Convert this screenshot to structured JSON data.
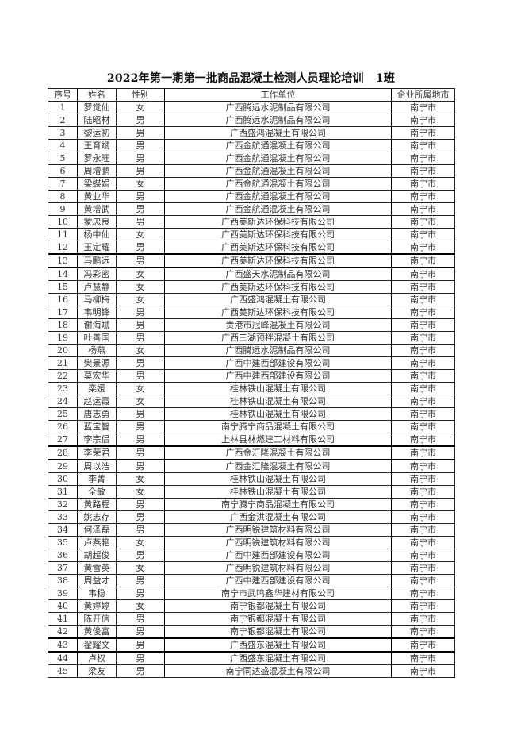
{
  "title": "2022年第一期第一批商品混凝土检测人员理论培训   1班",
  "headers": [
    "序号",
    "姓名",
    "性别",
    "工作单位",
    "企业所属地市"
  ],
  "rows": [
    [
      "1",
      "罗觉仙",
      "女",
      "广西腾远水泥制品有限公司",
      "南宁市"
    ],
    [
      "2",
      "陆昭材",
      "男",
      "广西腾远水泥制品有限公司",
      "南宁市"
    ],
    [
      "3",
      "黎运初",
      "男",
      "广西盛鸿混凝土有限公司",
      "南宁市"
    ],
    [
      "4",
      "王育斌",
      "男",
      "广西金航通混凝土有限公司",
      "南宁市"
    ],
    [
      "5",
      "罗永旺",
      "男",
      "广西金航通混凝土有限公司",
      "南宁市"
    ],
    [
      "6",
      "周增鹏",
      "男",
      "广西金航通混凝土有限公司",
      "南宁市"
    ],
    [
      "7",
      "梁蝶娟",
      "女",
      "广西金航通混凝土有限公司",
      "南宁市"
    ],
    [
      "8",
      "黄业华",
      "男",
      "广西金航通混凝土有限公司",
      "南宁市"
    ],
    [
      "9",
      "黄增武",
      "男",
      "广西金航通混凝土有限公司",
      "南宁市"
    ],
    [
      "10",
      "蒙忠良",
      "男",
      "广西美斯达环保科技有限公司",
      "南宁市"
    ],
    [
      "11",
      "杨中仙",
      "女",
      "广西美斯达环保科技有限公司",
      "南宁市"
    ],
    [
      "12",
      "王定耀",
      "男",
      "广西美斯达环保科技有限公司",
      "南宁市"
    ],
    [
      "13",
      "马鹏远",
      "男",
      "广西美斯达环保科技有限公司",
      "南宁市"
    ],
    [
      "14",
      "冯彩密",
      "女",
      "广西盛天水泥制品有限公司",
      "南宁市"
    ],
    [
      "15",
      "卢慧静",
      "女",
      "广西美斯达环保科技有限公司",
      "南宁市"
    ],
    [
      "16",
      "马柳梅",
      "女",
      "广西盛鸿混凝土有限公司",
      "南宁市"
    ],
    [
      "17",
      "韦明锋",
      "男",
      "广西美斯达环保科技有限公司",
      "南宁市"
    ],
    [
      "18",
      "谢海斌",
      "男",
      "贵港市冠峰混凝土有限公司",
      "南宁市"
    ],
    [
      "19",
      "叶善国",
      "男",
      "广西三湖预拌混凝土有限公司",
      "南宁市"
    ],
    [
      "20",
      "杨燕",
      "女",
      "广西腾远水泥制品有限公司",
      "南宁市"
    ],
    [
      "21",
      "樊景源",
      "男",
      "广西中建西部建设有限公司",
      "南宁市"
    ],
    [
      "22",
      "莫宏华",
      "男",
      "广西中建西部建设有限公司",
      "南宁市"
    ],
    [
      "23",
      "栾媛",
      "女",
      "桂林铁山混凝土有限公司",
      "南宁市"
    ],
    [
      "24",
      "赵运霞",
      "女",
      "桂林铁山混凝土有限公司",
      "南宁市"
    ],
    [
      "25",
      "唐志勇",
      "男",
      "桂林铁山混凝土有限公司",
      "南宁市"
    ],
    [
      "26",
      "蓝宝智",
      "男",
      "南宁腾宁商品混凝土有限公司",
      "南宁市"
    ],
    [
      "27",
      "李宗侣",
      "男",
      "上林县林燃建工材料有限公司",
      "南宁市"
    ],
    [
      "28",
      "李荣君",
      "男",
      "广西金汇隆混凝土有限公司",
      "南宁市"
    ],
    [
      "29",
      "周以浩",
      "男",
      "广西金汇隆混凝土有限公司",
      "南宁市"
    ],
    [
      "30",
      "李菁",
      "女",
      "桂林铁山混凝土有限公司",
      "南宁市"
    ],
    [
      "31",
      "全敏",
      "女",
      "桂林铁山混凝土有限公司",
      "南宁市"
    ],
    [
      "32",
      "黄路程",
      "男",
      "南宁腾宁商品混凝土有限公司",
      "南宁市"
    ],
    [
      "33",
      "姚志存",
      "男",
      "广西金洪混凝土有限公司",
      "南宁市"
    ],
    [
      "34",
      "何泽磊",
      "男",
      "广西明锐建筑材料有限公司",
      "南宁市"
    ],
    [
      "35",
      "卢燕艳",
      "女",
      "广西明锐建筑材料有限公司",
      "南宁市"
    ],
    [
      "36",
      "胡超俊",
      "男",
      "广西中建西部建设有限公司",
      "南宁市"
    ],
    [
      "37",
      "黄雪英",
      "女",
      "广西明锐建筑材料有限公司",
      "南宁市"
    ],
    [
      "38",
      "周益才",
      "男",
      "广西中建西部建设有限公司",
      "南宁市"
    ],
    [
      "39",
      "韦稳",
      "男",
      "南宁市武鸣鑫华建材有限公司",
      "南宁市"
    ],
    [
      "40",
      "黄婷婷",
      "女",
      "南宁银都混凝土有限公司",
      "南宁市"
    ],
    [
      "41",
      "陈开信",
      "男",
      "南宁银都混凝土有限公司",
      "南宁市"
    ],
    [
      "42",
      "黄俊富",
      "男",
      "南宁银都混凝土有限公司",
      "南宁市"
    ],
    [
      "43",
      "翟耀文",
      "男",
      "广西盛东混凝土有限公司",
      "南宁市"
    ],
    [
      "44",
      "卢权",
      "男",
      "广西盛东混凝土有限公司",
      "南宁市"
    ],
    [
      "45",
      "梁友",
      "男",
      "南宁同达盛混凝土有限公司",
      "南宁市"
    ]
  ]
}
